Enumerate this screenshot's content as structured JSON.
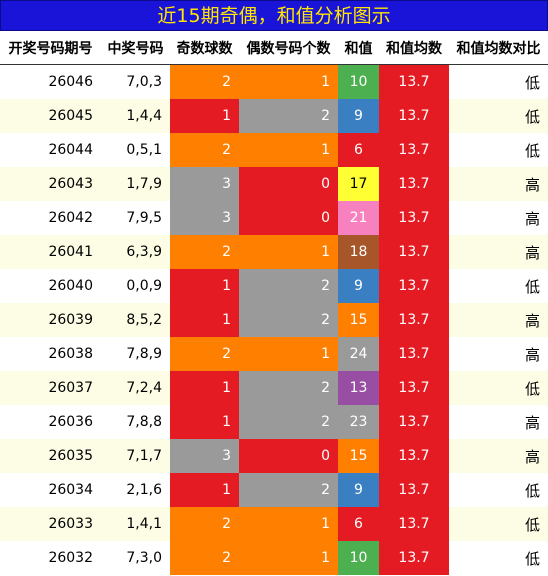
{
  "title": "近15期奇偶，和值分析图示",
  "headers": [
    "开奖号码期号",
    "中奖号码",
    "奇数球数",
    "偶数号码个数",
    "和值",
    "和值均数",
    "和值均数对比"
  ],
  "colors": {
    "title_bg": "#1a14d8",
    "title_text": "#ffe600",
    "orange": "#ff7f00",
    "red": "#e51b23",
    "gray": "#9a9a9a"
  },
  "rows": [
    {
      "issue": "26046",
      "nums": "7,0,3",
      "odd": "2",
      "even": "1",
      "sum": "10",
      "avg": "13.7",
      "cmp": "低",
      "sum_color": "#4caf50"
    },
    {
      "issue": "26045",
      "nums": "1,4,4",
      "odd": "1",
      "even": "2",
      "sum": "9",
      "avg": "13.7",
      "cmp": "低",
      "sum_color": "#3a7fc1"
    },
    {
      "issue": "26044",
      "nums": "0,5,1",
      "odd": "2",
      "even": "1",
      "sum": "6",
      "avg": "13.7",
      "cmp": "低",
      "sum_color": "#e51b23"
    },
    {
      "issue": "26043",
      "nums": "1,7,9",
      "odd": "3",
      "even": "0",
      "sum": "17",
      "avg": "13.7",
      "cmp": "高",
      "sum_color": "#ffff33"
    },
    {
      "issue": "26042",
      "nums": "7,9,5",
      "odd": "3",
      "even": "0",
      "sum": "21",
      "avg": "13.7",
      "cmp": "高",
      "sum_color": "#f781bf"
    },
    {
      "issue": "26041",
      "nums": "6,3,9",
      "odd": "2",
      "even": "1",
      "sum": "18",
      "avg": "13.7",
      "cmp": "高",
      "sum_color": "#a65628"
    },
    {
      "issue": "26040",
      "nums": "0,0,9",
      "odd": "1",
      "even": "2",
      "sum": "9",
      "avg": "13.7",
      "cmp": "低",
      "sum_color": "#3a7fc1"
    },
    {
      "issue": "26039",
      "nums": "8,5,2",
      "odd": "1",
      "even": "2",
      "sum": "15",
      "avg": "13.7",
      "cmp": "高",
      "sum_color": "#ff7f00"
    },
    {
      "issue": "26038",
      "nums": "7,8,9",
      "odd": "2",
      "even": "1",
      "sum": "24",
      "avg": "13.7",
      "cmp": "高",
      "sum_color": "#9a9a9a"
    },
    {
      "issue": "26037",
      "nums": "7,2,4",
      "odd": "1",
      "even": "2",
      "sum": "13",
      "avg": "13.7",
      "cmp": "低",
      "sum_color": "#984ea3"
    },
    {
      "issue": "26036",
      "nums": "7,8,8",
      "odd": "1",
      "even": "2",
      "sum": "23",
      "avg": "13.7",
      "cmp": "高",
      "sum_color": "#9a9a9a"
    },
    {
      "issue": "26035",
      "nums": "7,1,7",
      "odd": "3",
      "even": "0",
      "sum": "15",
      "avg": "13.7",
      "cmp": "高",
      "sum_color": "#ff7f00"
    },
    {
      "issue": "26034",
      "nums": "2,1,6",
      "odd": "1",
      "even": "2",
      "sum": "9",
      "avg": "13.7",
      "cmp": "低",
      "sum_color": "#3a7fc1"
    },
    {
      "issue": "26033",
      "nums": "1,4,1",
      "odd": "2",
      "even": "1",
      "sum": "6",
      "avg": "13.7",
      "cmp": "低",
      "sum_color": "#e51b23"
    },
    {
      "issue": "26032",
      "nums": "7,3,0",
      "odd": "2",
      "even": "1",
      "sum": "10",
      "avg": "13.7",
      "cmp": "低",
      "sum_color": "#4caf50"
    }
  ]
}
